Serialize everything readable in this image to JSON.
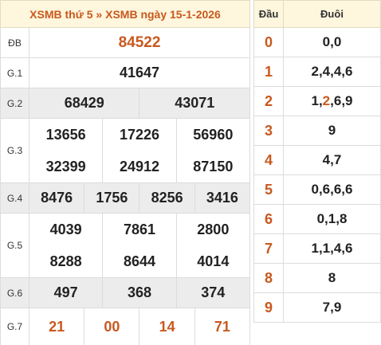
{
  "header": {
    "crumb_1": "XSMB thứ 5",
    "separator": "»",
    "crumb_2": "XSMB ngày 15-1-2026"
  },
  "prizes": {
    "db": {
      "label": "ĐB",
      "numbers": [
        "84522"
      ]
    },
    "g1": {
      "label": "G.1",
      "numbers": [
        "41647"
      ]
    },
    "g2": {
      "label": "G.2",
      "numbers": [
        "68429",
        "43071"
      ]
    },
    "g3": {
      "label": "G.3",
      "numbers": [
        "13656",
        "17226",
        "56960",
        "32399",
        "24912",
        "87150"
      ]
    },
    "g4": {
      "label": "G.4",
      "numbers": [
        "8476",
        "1756",
        "8256",
        "3416"
      ]
    },
    "g5": {
      "label": "G.5",
      "numbers": [
        "4039",
        "7861",
        "2800",
        "8288",
        "8644",
        "4014"
      ]
    },
    "g6": {
      "label": "G.6",
      "numbers": [
        "497",
        "368",
        "374"
      ]
    },
    "g7": {
      "label": "G.7",
      "numbers": [
        "21",
        "00",
        "14",
        "71"
      ]
    }
  },
  "loto": {
    "col_head": "Đầu",
    "col_tail": "Đuôi",
    "rows": [
      {
        "head": "0",
        "tail": "0,0"
      },
      {
        "head": "1",
        "tail": "2,4,4,6"
      },
      {
        "head": "2",
        "tail_pre": "1,",
        "tail_hl": "2",
        "tail_post": ",6,9"
      },
      {
        "head": "3",
        "tail": "9"
      },
      {
        "head": "4",
        "tail": "4,7"
      },
      {
        "head": "5",
        "tail": "0,6,6,6"
      },
      {
        "head": "6",
        "tail": "0,1,8"
      },
      {
        "head": "7",
        "tail": "1,1,4,6"
      },
      {
        "head": "8",
        "tail": "8"
      },
      {
        "head": "9",
        "tail": "7,9"
      }
    ]
  },
  "colors": {
    "accent": "#c8591e",
    "header_bg": "#fef6dd",
    "shade_bg": "#ececec",
    "border": "#dcdcdc"
  }
}
